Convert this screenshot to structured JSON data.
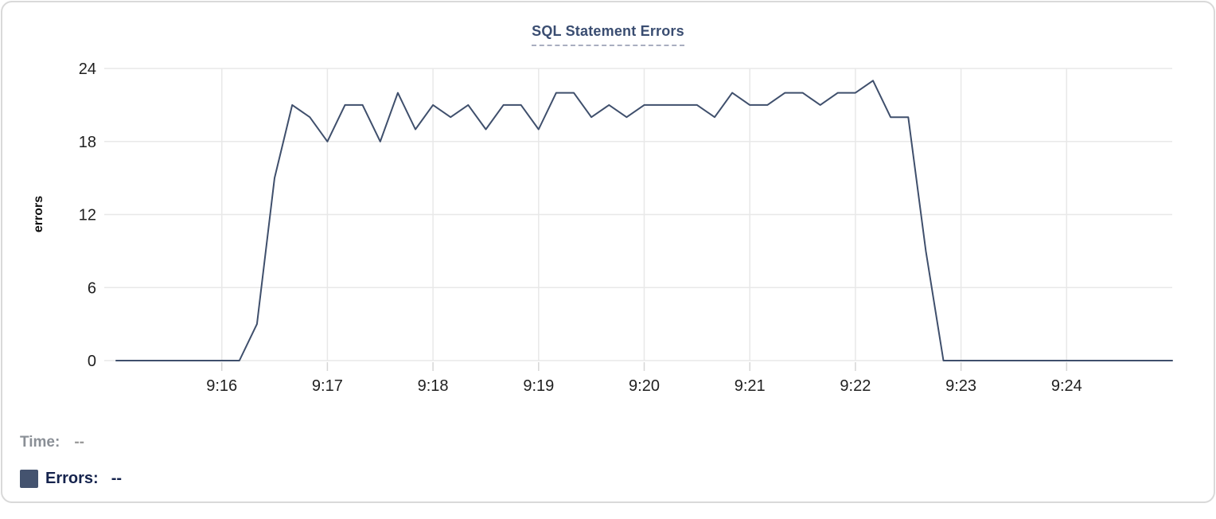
{
  "accent_color": "#3f4f6c",
  "grid_color": "#e8e8e8",
  "tick_text_color": "#1f1f1f",
  "chart_data": {
    "type": "line",
    "title": "SQL Statement Errors",
    "xlabel": "",
    "ylabel": "errors",
    "ylim": [
      0,
      24
    ],
    "y_ticks": [
      0,
      6,
      12,
      18,
      24
    ],
    "x_tick_labels": [
      "9:16",
      "9:17",
      "9:18",
      "9:19",
      "9:20",
      "9:21",
      "9:22",
      "9:23",
      "9:24"
    ],
    "x_tick_minute_offsets": [
      1,
      2,
      3,
      4,
      5,
      6,
      7,
      8,
      9
    ],
    "x_range_minutes": [
      0,
      10
    ],
    "grid": true,
    "legend_position": "bottom-left",
    "line_color": "#3f4f6c",
    "x": [
      "9:15:00",
      "9:15:10",
      "9:15:20",
      "9:15:30",
      "9:15:40",
      "9:15:50",
      "9:16:00",
      "9:16:10",
      "9:16:20",
      "9:16:30",
      "9:16:40",
      "9:16:50",
      "9:17:00",
      "9:17:10",
      "9:17:20",
      "9:17:30",
      "9:17:40",
      "9:17:50",
      "9:18:00",
      "9:18:10",
      "9:18:20",
      "9:18:30",
      "9:18:40",
      "9:18:50",
      "9:19:00",
      "9:19:10",
      "9:19:20",
      "9:19:30",
      "9:19:40",
      "9:19:50",
      "9:20:00",
      "9:20:10",
      "9:20:20",
      "9:20:30",
      "9:20:40",
      "9:20:50",
      "9:21:00",
      "9:21:10",
      "9:21:20",
      "9:21:30",
      "9:21:40",
      "9:21:50",
      "9:22:00",
      "9:22:10",
      "9:22:20",
      "9:22:30",
      "9:22:40",
      "9:22:50",
      "9:23:00",
      "9:23:10",
      "9:23:20",
      "9:23:30",
      "9:23:40",
      "9:23:50",
      "9:24:00",
      "9:24:10",
      "9:24:20",
      "9:24:30",
      "9:24:40",
      "9:24:50",
      "9:25:00"
    ],
    "values": [
      0,
      0,
      0,
      0,
      0,
      0,
      0,
      0,
      3,
      15,
      21,
      20,
      18,
      21,
      21,
      18,
      22,
      19,
      21,
      20,
      21,
      19,
      21,
      21,
      19,
      22,
      22,
      20,
      21,
      20,
      21,
      21,
      21,
      21,
      20,
      22,
      21,
      21,
      22,
      22,
      21,
      22,
      22,
      23,
      20,
      20,
      9,
      0,
      0,
      0,
      0,
      0,
      0,
      0,
      0,
      0,
      0,
      0,
      0,
      0,
      0
    ],
    "series_name": "Errors"
  },
  "legend": {
    "time_label": "Time:",
    "time_value": "--",
    "errors_label": "Errors:",
    "errors_value": "--",
    "errors_swatch_color": "#44536f"
  }
}
